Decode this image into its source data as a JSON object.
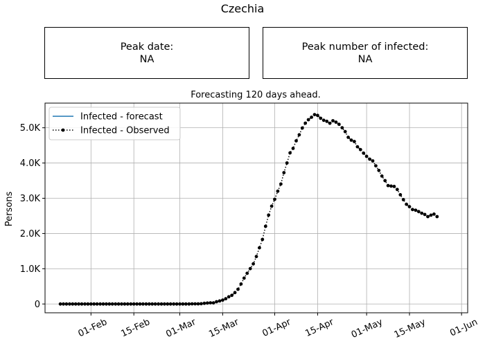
{
  "figure_title": "Czechia",
  "peak_date": {
    "label": "Peak date:",
    "value": "NA"
  },
  "peak_infected": {
    "label": "Peak number of infected:",
    "value": "NA"
  },
  "chart_data": {
    "type": "line",
    "title": "Forecasting 120 days ahead.",
    "ylabel": "Persons",
    "xlabel": "",
    "grid": true,
    "legend_position": "top-left",
    "xlim": [
      "2020-01-17",
      "2020-06-03"
    ],
    "ylim": [
      -250,
      5700
    ],
    "x_ticks": [
      {
        "date": "2020-02-01",
        "label": "01-Feb"
      },
      {
        "date": "2020-02-15",
        "label": "15-Feb"
      },
      {
        "date": "2020-03-01",
        "label": "01-Mar"
      },
      {
        "date": "2020-03-15",
        "label": "15-Mar"
      },
      {
        "date": "2020-04-01",
        "label": "01-Apr"
      },
      {
        "date": "2020-04-15",
        "label": "15-Apr"
      },
      {
        "date": "2020-05-01",
        "label": "01-May"
      },
      {
        "date": "2020-05-15",
        "label": "15-May"
      },
      {
        "date": "2020-06-01",
        "label": "01-Jun"
      }
    ],
    "y_ticks": [
      {
        "value": 0,
        "label": "0"
      },
      {
        "value": 1000,
        "label": "1.0K"
      },
      {
        "value": 2000,
        "label": "2.0K"
      },
      {
        "value": 3000,
        "label": "3.0K"
      },
      {
        "value": 4000,
        "label": "4.0K"
      },
      {
        "value": 5000,
        "label": "5.0K"
      }
    ],
    "series": [
      {
        "name": "Infected - forecast",
        "color": "#1f77b4",
        "style": "solid",
        "points": []
      },
      {
        "name": "Infected - Observed",
        "color": "#000000",
        "style": "dotted-markers",
        "start_date": "2020-01-22",
        "values": [
          0,
          0,
          0,
          0,
          0,
          0,
          0,
          0,
          0,
          0,
          0,
          0,
          0,
          0,
          0,
          0,
          0,
          0,
          0,
          0,
          0,
          0,
          0,
          0,
          0,
          0,
          0,
          0,
          0,
          0,
          0,
          0,
          0,
          0,
          0,
          0,
          0,
          0,
          0,
          0,
          0,
          0,
          0,
          3,
          3,
          4,
          8,
          19,
          26,
          32,
          31,
          64,
          85,
          109,
          149,
          203,
          244,
          323,
          418,
          567,
          734,
          871,
          1002,
          1138,
          1346,
          1593,
          1831,
          2205,
          2523,
          2777,
          2971,
          3200,
          3405,
          3727,
          4002,
          4288,
          4415,
          4630,
          4800,
          4993,
          5130,
          5228,
          5300,
          5375,
          5350,
          5270,
          5213,
          5183,
          5129,
          5200,
          5160,
          5100,
          5000,
          4890,
          4730,
          4650,
          4610,
          4460,
          4380,
          4280,
          4190,
          4110,
          4060,
          3920,
          3790,
          3630,
          3500,
          3360,
          3345,
          3335,
          3250,
          3100,
          2960,
          2830,
          2760,
          2680,
          2660,
          2620,
          2575,
          2540,
          2480,
          2520,
          2550,
          2480
        ]
      }
    ]
  }
}
